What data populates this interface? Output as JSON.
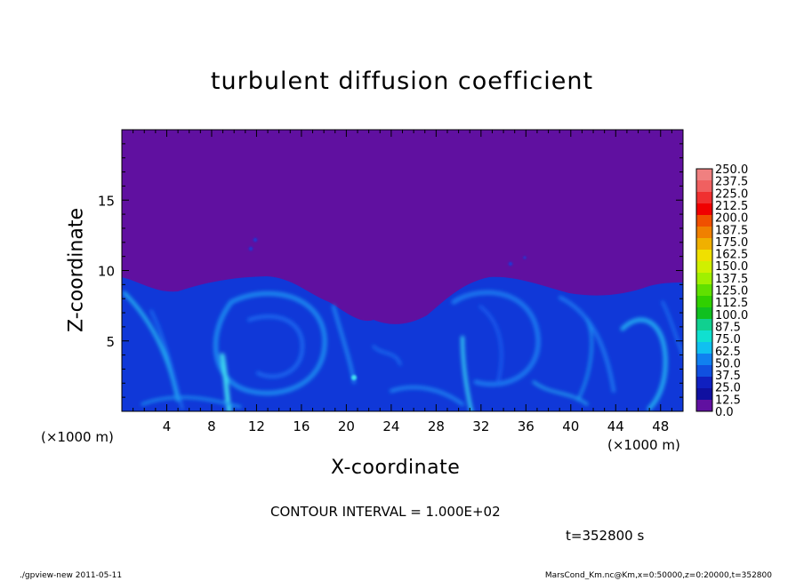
{
  "chart_data": {
    "type": "heatmap",
    "title": "turbulent diffusion coefficient",
    "xlabel": "X-coordinate",
    "ylabel": "Z-coordinate",
    "x_unit": "(×1000 m)",
    "y_unit": "(×1000 m)",
    "xlim": [
      0,
      50
    ],
    "ylim": [
      0,
      20
    ],
    "x_ticks": [
      "4",
      "8",
      "12",
      "16",
      "20",
      "24",
      "28",
      "32",
      "36",
      "40",
      "44",
      "48"
    ],
    "y_ticks": [
      "5",
      "10",
      "15"
    ],
    "colorbar": {
      "levels": [
        "250.0",
        "237.5",
        "225.0",
        "212.5",
        "200.0",
        "187.5",
        "175.0",
        "162.5",
        "150.0",
        "137.5",
        "125.0",
        "112.5",
        "100.0",
        "87.5",
        "75.0",
        "62.5",
        "50.0",
        "37.5",
        "25.0",
        "12.5",
        "0.0"
      ],
      "colors": [
        "#f08080",
        "#f06060",
        "#f03030",
        "#f00000",
        "#f05000",
        "#f08000",
        "#f0b000",
        "#f0e000",
        "#d0f000",
        "#a0f000",
        "#60e000",
        "#30d000",
        "#10c020",
        "#10d090",
        "#10e0d0",
        "#10c0f0",
        "#1080f0",
        "#1050e0",
        "#1020c0",
        "#1010a0",
        "#6010a0"
      ]
    },
    "field_description": "Background value 0.0 (purple) above a turbulent boundary layer; blue values (~12.5–75) below the layer top near Z≈9.5, dipping to Z≈5 around X≈22–26"
  },
  "annotations": {
    "contour_interval": "CONTOUR INTERVAL = 1.000E+02",
    "time": "t=352800 s",
    "footer_left": "./gpview-new   2011-05-11",
    "footer_right": "MarsCond_Km.nc@Km,x=0:50000,z=0:20000,t=352800"
  },
  "colors": {
    "background_purple": "#6010a0",
    "blue_dark": "#1030d0",
    "blue_mid": "#1060f0",
    "cyan": "#20c0f0"
  }
}
